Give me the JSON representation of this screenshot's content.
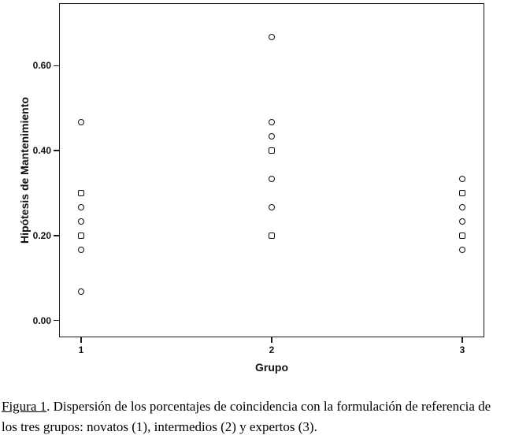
{
  "chart_data": {
    "type": "scatter",
    "title": "",
    "xlabel": "Grupo",
    "ylabel": "Hipótesis de Mantenimiento",
    "categories": [
      "1",
      "2",
      "3"
    ],
    "ytick_labels": [
      "0.00",
      "0.20",
      "0.40",
      "0.60"
    ],
    "yticks": [
      0.0,
      0.2,
      0.4,
      0.6
    ],
    "ylim": [
      -0.04,
      0.75
    ],
    "grid": false,
    "marker_style": "open",
    "marker_color": "#0d0d0d",
    "series": [
      {
        "name": "novatos (1)",
        "x": 1,
        "values": [
          0.467,
          0.3,
          0.267,
          0.233,
          0.2,
          0.167,
          0.067
        ],
        "marker_shapes": [
          "circle",
          "square",
          "circle",
          "circle",
          "square",
          "circle",
          "circle"
        ]
      },
      {
        "name": "intermedios (2)",
        "x": 2,
        "values": [
          0.667,
          0.467,
          0.433,
          0.4,
          0.333,
          0.267,
          0.2
        ],
        "marker_shapes": [
          "circle",
          "circle",
          "circle",
          "square",
          "circle",
          "circle",
          "square"
        ]
      },
      {
        "name": "expertos (3)",
        "x": 3,
        "values": [
          0.333,
          0.3,
          0.267,
          0.233,
          0.2,
          0.167
        ],
        "marker_shapes": [
          "circle",
          "square",
          "circle",
          "circle",
          "square",
          "circle"
        ]
      }
    ]
  },
  "caption": {
    "label": "Figura 1",
    "line1_rest": ". Dispersión de los porcentajes de coincidencia con la formulación de referencia de",
    "line2": "los tres grupos: novatos (1), intermedios (2) y expertos (3)."
  }
}
